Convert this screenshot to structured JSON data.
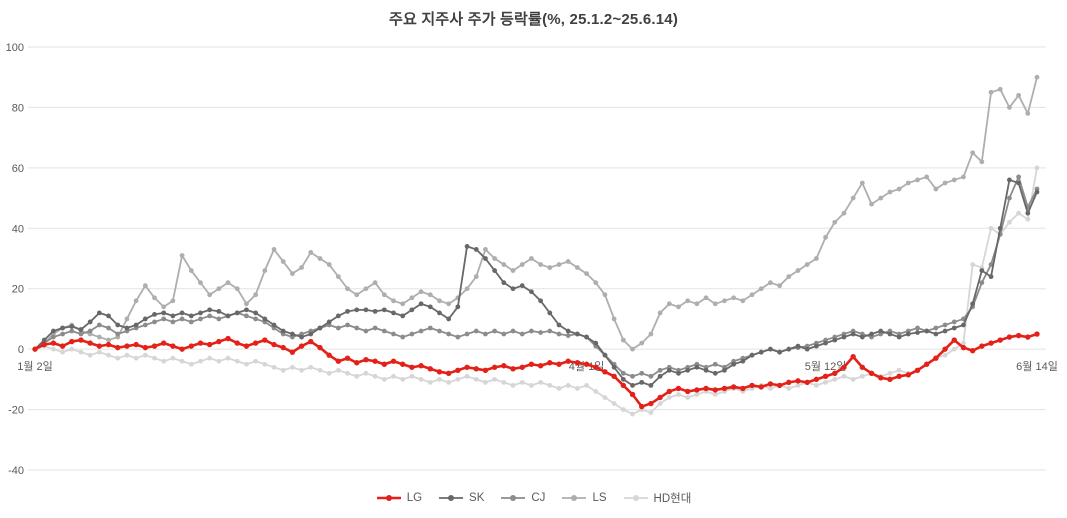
{
  "title": {
    "main": "주요 지주사 주가 등락률",
    "sub": "(%, 25.1.2~25.6.14)"
  },
  "chart_data": {
    "type": "line",
    "title": "주요 지주사 주가 등락률(%, 25.1.2~25.6.14)",
    "unit": "%",
    "period": "25.1.2~25.6.14",
    "grid": true,
    "legend_position": "bottom",
    "marker": "circle",
    "ylim": [
      -40,
      100
    ],
    "yticks": [
      100,
      80,
      60,
      40,
      20,
      0,
      -20,
      -40
    ],
    "x_labels": [
      {
        "index": 0,
        "label": "1월 2일"
      },
      {
        "index": 60,
        "label": "4월 1일"
      },
      {
        "index": 86,
        "label": "5월 12일"
      },
      {
        "index": 109,
        "label": "6월 14일"
      }
    ],
    "series": [
      {
        "name": "LG",
        "color": "#e32119",
        "values": [
          0,
          1.5,
          2,
          1,
          2.5,
          3,
          2,
          1,
          1.5,
          0.5,
          1,
          1.5,
          0.5,
          1,
          2,
          1,
          0,
          1,
          2,
          1.5,
          2.5,
          3.5,
          2,
          1,
          2,
          3,
          1.5,
          0.5,
          -1,
          1,
          2.5,
          0.5,
          -2,
          -4,
          -3,
          -4.5,
          -3.5,
          -4,
          -5,
          -4,
          -5,
          -6,
          -5.5,
          -6.5,
          -7.5,
          -8,
          -7,
          -6,
          -6.5,
          -7,
          -6,
          -5.5,
          -6.5,
          -6,
          -5,
          -5.5,
          -4.5,
          -5,
          -4,
          -4.5,
          -5,
          -6,
          -7.5,
          -9,
          -12,
          -15,
          -19,
          -18,
          -16,
          -14,
          -13,
          -14,
          -13.5,
          -13,
          -13.5,
          -13,
          -12.5,
          -13,
          -12,
          -12.5,
          -11.5,
          -12,
          -11,
          -10.5,
          -11,
          -10,
          -9,
          -8,
          -6,
          -2.5,
          -6,
          -8,
          -9.5,
          -10,
          -9,
          -8.5,
          -7,
          -5,
          -3,
          0,
          3,
          0.5,
          -0.5,
          1,
          2,
          3,
          4,
          4.5,
          4,
          5
        ]
      },
      {
        "name": "SK",
        "color": "#686868",
        "values": [
          0,
          3,
          6,
          7,
          7.5,
          6.5,
          9,
          12,
          11,
          8,
          7,
          8,
          10,
          11.5,
          12,
          11,
          12,
          11,
          12,
          13,
          12.5,
          11,
          12,
          13,
          12,
          10,
          8,
          6,
          5,
          4,
          5,
          7,
          9,
          11,
          12.5,
          13,
          13,
          12.5,
          13,
          12,
          11,
          13,
          15,
          14,
          12,
          10,
          14,
          34,
          33,
          30,
          26,
          22,
          20,
          21,
          19,
          16,
          12,
          8,
          6,
          5,
          4,
          2,
          -2,
          -6,
          -10,
          -12,
          -11,
          -12,
          -9,
          -7,
          -8,
          -7,
          -6,
          -7,
          -8,
          -7,
          -5,
          -4,
          -2,
          -1,
          0,
          -1,
          0,
          1,
          0,
          1,
          2,
          3,
          4,
          5,
          4,
          5,
          6,
          5,
          4,
          5,
          5.5,
          6,
          5,
          6,
          7,
          8,
          15,
          26,
          24,
          40,
          56,
          55,
          45,
          52
        ]
      },
      {
        "name": "CJ",
        "color": "#8c8c8c",
        "values": [
          0,
          2,
          4,
          5,
          6,
          5,
          6,
          8,
          7,
          5,
          6,
          7,
          8,
          9,
          10,
          9,
          10,
          9,
          10,
          11,
          10,
          11,
          12,
          11,
          10,
          9,
          7,
          5,
          4,
          5,
          6,
          7,
          8,
          7,
          8,
          7,
          6,
          7,
          6,
          5,
          4,
          5,
          6,
          7,
          6,
          5,
          4,
          5,
          6,
          5,
          6,
          5,
          6,
          5,
          6,
          5.5,
          6,
          5,
          4.5,
          5,
          4,
          1,
          -2,
          -5,
          -8,
          -9,
          -8,
          -9,
          -7,
          -6,
          -7,
          -6,
          -5,
          -6,
          -5,
          -6,
          -4,
          -3,
          -2,
          -1,
          0,
          -1,
          0,
          0.5,
          1,
          2,
          3,
          4,
          5,
          6,
          5,
          4,
          5,
          6,
          5,
          6,
          7,
          6,
          7,
          8,
          9,
          10,
          14,
          22,
          28,
          38,
          50,
          57,
          47,
          53
        ]
      },
      {
        "name": "LS",
        "color": "#aeaeae",
        "values": [
          0,
          2,
          5,
          7,
          8,
          6,
          5,
          4,
          3,
          4,
          10,
          16,
          21,
          17,
          14,
          16,
          31,
          26,
          22,
          18,
          20,
          22,
          20,
          15,
          18,
          26,
          33,
          29,
          25,
          27,
          32,
          30,
          28,
          24,
          20,
          18,
          20,
          22,
          18,
          16,
          15,
          17,
          19,
          18,
          16,
          15,
          17,
          20,
          24,
          33,
          30,
          28,
          26,
          28,
          30,
          28,
          27,
          28,
          29,
          27,
          25,
          22,
          18,
          10,
          3,
          0,
          2,
          5,
          12,
          15,
          14,
          16,
          15,
          17,
          15,
          16,
          17,
          16,
          18,
          20,
          22,
          21,
          24,
          26,
          28,
          30,
          37,
          42,
          45,
          50,
          55,
          48,
          50,
          52,
          53,
          55,
          56,
          57,
          53,
          55,
          56,
          57,
          65,
          62,
          85,
          86,
          80,
          84,
          78,
          90
        ]
      },
      {
        "name": "HD현대",
        "color": "#d6d6d6",
        "values": [
          0,
          1,
          0,
          -1,
          0,
          -1,
          -2,
          -1,
          -2,
          -3,
          -2,
          -3,
          -2,
          -3,
          -4,
          -3,
          -4,
          -5,
          -4,
          -3,
          -4,
          -3,
          -4,
          -5,
          -4,
          -5,
          -6,
          -7,
          -6,
          -7,
          -6,
          -7,
          -8,
          -7,
          -8,
          -9,
          -8,
          -9,
          -10,
          -9,
          -10,
          -9,
          -10,
          -11,
          -10,
          -11,
          -10,
          -9,
          -10,
          -11,
          -10,
          -11,
          -12,
          -11,
          -12,
          -11,
          -12,
          -13,
          -12,
          -13,
          -12,
          -14,
          -16,
          -18,
          -20,
          -21.5,
          -20,
          -21,
          -18,
          -16,
          -15,
          -16,
          -15,
          -14,
          -15,
          -14,
          -13,
          -14,
          -13,
          -12,
          -13,
          -12,
          -13,
          -12,
          -11,
          -12,
          -11,
          -10,
          -9,
          -10,
          -9,
          -8,
          -9,
          -8,
          -7,
          -8,
          -7,
          -5,
          -3,
          -2,
          0,
          2,
          28,
          27,
          40,
          38,
          42,
          45,
          43,
          60
        ]
      }
    ],
    "colors": {
      "LG": "#e32119",
      "SK": "#686868",
      "CJ": "#8c8c8c",
      "LS": "#aeaeae",
      "HD현대": "#d6d6d6",
      "grid": "#e3e3e3",
      "axis_text": "#595959",
      "title_text": "#404040"
    }
  }
}
